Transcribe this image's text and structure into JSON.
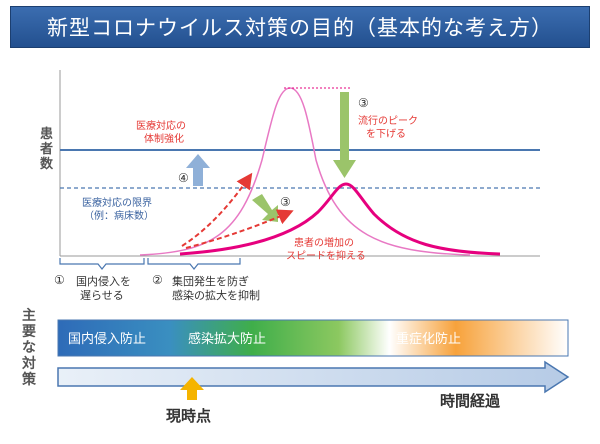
{
  "title": "新型コロナウイルス対策の目的（基本的な考え方）",
  "y_axis_label": [
    "患",
    "者",
    "数"
  ],
  "measures_label": [
    "主",
    "要",
    "な",
    "対",
    "策"
  ],
  "capacity_limit": [
    "医療対応の限界",
    "（例：病床数）"
  ],
  "strengthen_system": [
    "医療対応の",
    "体制強化"
  ],
  "peak_lower": [
    "流行のピーク",
    "を下げる"
  ],
  "slow_spread": [
    "患者の増加の",
    "スピードを抑える"
  ],
  "markers": {
    "one": "①",
    "two": "②",
    "three": "③",
    "four": "④"
  },
  "phase1": [
    "国内侵入を",
    "遅らせる"
  ],
  "phase2": [
    "集団発生を防ぎ",
    "感染の拡大を抑制"
  ],
  "bar": {
    "prevent_entry": "国内侵入防止",
    "prevent_spread": "感染拡大防止",
    "prevent_severe": "重症化防止"
  },
  "time_label": "時間経過",
  "now_label": "現時点",
  "colors": {
    "title_bg": "#2c5ea0",
    "curve": "#e6007e",
    "red_text": "#e53935",
    "line": "#4a77b0"
  }
}
